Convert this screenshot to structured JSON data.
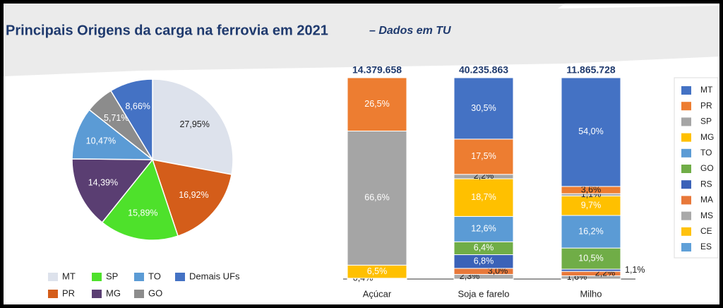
{
  "header": {
    "title": "Principais Origens da carga na ferrovia em 2021",
    "subtitle": "– Dados em TU"
  },
  "chart_data": [
    {
      "type": "pie",
      "categories": [
        "MT",
        "PR",
        "SP",
        "MG",
        "TO",
        "GO",
        "Demais UFs"
      ],
      "values": [
        27.95,
        16.92,
        15.89,
        14.39,
        10.47,
        5.71,
        8.66
      ],
      "value_labels": [
        "27,95%",
        "16,92%",
        "15,89%",
        "14,39%",
        "10,47%",
        "5,71%",
        "8,66%"
      ],
      "colors": [
        "#dde2ec",
        "#d45d1a",
        "#4ee12b",
        "#5a3e72",
        "#5b9bd5",
        "#8c8c8c",
        "#4472c4"
      ]
    },
    {
      "type": "stacked-bar",
      "categories": [
        "Açúcar",
        "Soja e farelo",
        "Milho"
      ],
      "totals": [
        14379658,
        40235863,
        11865728
      ],
      "total_labels": [
        "14.379.658",
        "40.235.863",
        "11.865.728"
      ],
      "series": [
        {
          "name": "MT",
          "color": "#4472c4",
          "values": [
            null,
            30.5,
            54.0
          ],
          "value_labels": [
            null,
            "30,5%",
            "54,0%"
          ]
        },
        {
          "name": "PR",
          "color": "#ed7d31",
          "values": [
            26.5,
            17.5,
            3.6
          ],
          "value_labels": [
            "26,5%",
            "17,5%",
            "3,6%"
          ]
        },
        {
          "name": "SP",
          "color": "#a5a5a5",
          "values": [
            66.6,
            2.2,
            1.1
          ],
          "value_labels": [
            "66,6%",
            "2,2%",
            "1,1%"
          ]
        },
        {
          "name": "MG",
          "color": "#ffc000",
          "values": [
            6.5,
            18.7,
            9.7
          ],
          "value_labels": [
            "6,5%",
            "18,7%",
            "9,7%"
          ]
        },
        {
          "name": "TO",
          "color": "#5b9bd5",
          "values": [
            null,
            12.6,
            16.2
          ],
          "value_labels": [
            null,
            "12,6%",
            "16,2%"
          ]
        },
        {
          "name": "GO",
          "color": "#70ad47",
          "values": [
            null,
            6.4,
            10.5
          ],
          "value_labels": [
            null,
            "6,4%",
            "10,5%"
          ]
        },
        {
          "name": "RS",
          "color": "#3b62b8",
          "values": [
            null,
            6.8,
            1.1
          ],
          "value_labels": [
            null,
            "6,8%",
            "1,1%"
          ]
        },
        {
          "name": "MA",
          "color": "#e8783a",
          "values": [
            null,
            3.0,
            2.2
          ],
          "value_labels": [
            null,
            "3,0%",
            "2,2%"
          ]
        },
        {
          "name": "MS",
          "color": "#a9a9a9",
          "values": [
            0.4,
            2.3,
            1.6
          ],
          "value_labels": [
            "0,4%",
            "2,3%",
            "1,6%"
          ]
        },
        {
          "name": "CE",
          "color": "#ffc20e",
          "values": [
            null,
            null,
            null
          ],
          "value_labels": [
            null,
            null,
            null
          ]
        },
        {
          "name": "ES",
          "color": "#5fa0d8",
          "values": [
            null,
            null,
            null
          ],
          "value_labels": [
            null,
            null,
            null
          ]
        }
      ]
    }
  ]
}
